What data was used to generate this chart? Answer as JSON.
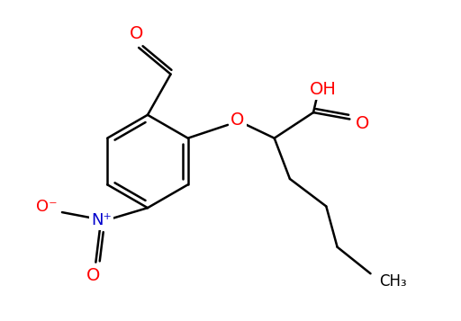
{
  "bg_color": "#ffffff",
  "bond_color": "#000000",
  "bond_width": 1.8,
  "atom_colors": {
    "O": "#ff0000",
    "N": "#0000cc"
  },
  "figsize": [
    5.12,
    3.57
  ],
  "dpi": 100,
  "xlim": [
    0,
    10.24
  ],
  "ylim": [
    0,
    7.14
  ]
}
